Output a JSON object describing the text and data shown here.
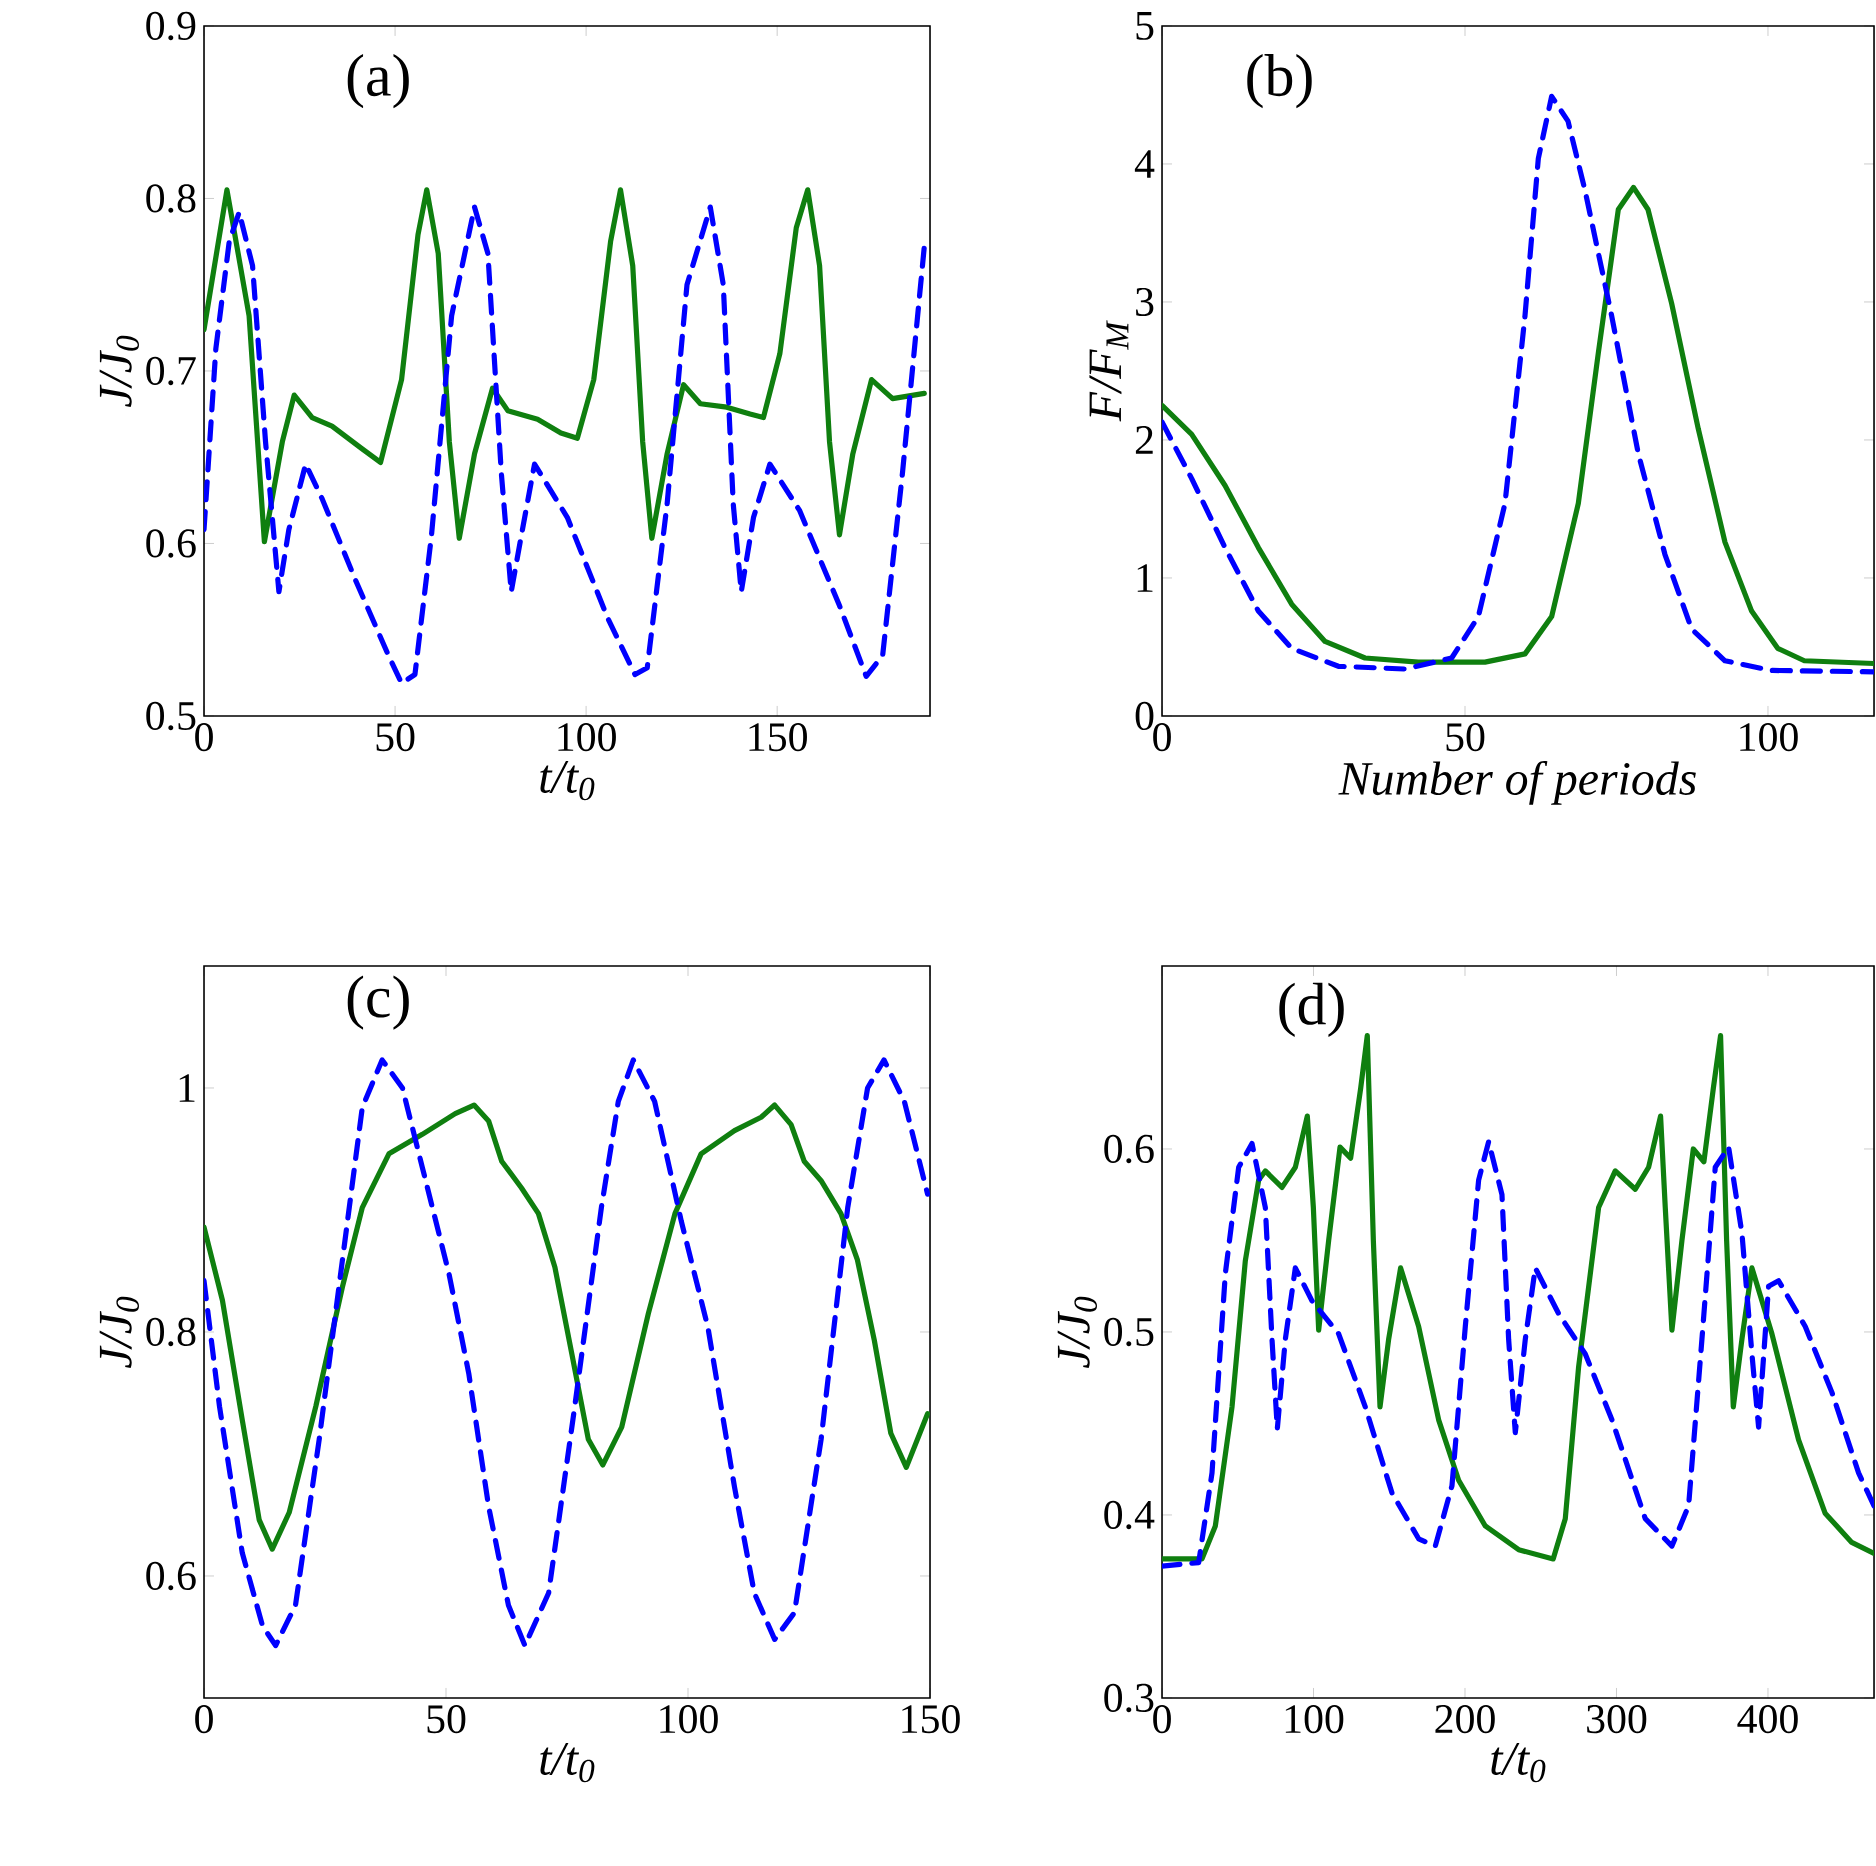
{
  "chart_data": [
    {
      "type": "line",
      "xlabel": "t/t$_{0}$",
      "ylabel": "J/J$_{0}$",
      "annotations": [
        "(a)"
      ],
      "xlim": [
        0,
        190
      ],
      "ylim": [
        0.5,
        0.9
      ],
      "xticks": [
        0,
        50,
        100,
        150
      ],
      "yticks": [
        0.5,
        0.6,
        0.7,
        0.8,
        0.9
      ],
      "series": [
        {
          "color": "#0f7f0f",
          "line_style": "solid",
          "x": [
            0,
            6,
            11.8,
            15.8,
            20.5,
            23.6,
            28.3,
            33.5,
            41.3,
            46.2,
            51.7,
            56,
            58.3,
            61.3,
            64.2,
            66.8,
            70.8,
            75.5,
            79.5,
            87.3,
            93.4,
            97.7,
            102,
            106.4,
            109,
            112.2,
            114.8,
            117.2,
            121.2,
            125.5,
            129.9,
            136.8,
            142.9,
            146.4,
            150.7,
            155,
            158,
            161.1,
            163.7,
            166.3,
            169.8,
            174.7,
            180.2,
            188.5
          ],
          "values": [
            0.724,
            0.805,
            0.732,
            0.601,
            0.659,
            0.686,
            0.673,
            0.668,
            0.655,
            0.647,
            0.695,
            0.779,
            0.805,
            0.768,
            0.659,
            0.603,
            0.652,
            0.69,
            0.677,
            0.672,
            0.664,
            0.661,
            0.695,
            0.775,
            0.805,
            0.761,
            0.659,
            0.603,
            0.652,
            0.692,
            0.681,
            0.679,
            0.675,
            0.673,
            0.71,
            0.783,
            0.805,
            0.761,
            0.659,
            0.605,
            0.652,
            0.695,
            0.684,
            0.687
          ]
        },
        {
          "color": "#0000ff",
          "line_style": "dashed",
          "x": [
            0,
            3.1,
            6.6,
            9.2,
            12.7,
            16.1,
            19.6,
            22.2,
            26.6,
            30.9,
            39.6,
            48.3,
            51.7,
            55.2,
            59.5,
            64.8,
            70.8,
            74.3,
            77.8,
            80.4,
            83,
            86.5,
            95.1,
            105.6,
            112.8,
            116,
            121.2,
            126.4,
            132.5,
            135.9,
            138.5,
            140.6,
            143.8,
            148.1,
            155.9,
            166.3,
            173.3,
            177.6,
            182.8,
            188.5
          ],
          "values": [
            0.608,
            0.713,
            0.775,
            0.792,
            0.761,
            0.659,
            0.572,
            0.608,
            0.646,
            0.626,
            0.579,
            0.535,
            0.519,
            0.524,
            0.604,
            0.732,
            0.795,
            0.768,
            0.641,
            0.572,
            0.604,
            0.646,
            0.615,
            0.557,
            0.524,
            0.528,
            0.623,
            0.75,
            0.795,
            0.75,
            0.623,
            0.572,
            0.615,
            0.646,
            0.619,
            0.564,
            0.523,
            0.535,
            0.641,
            0.772
          ]
        }
      ]
    },
    {
      "type": "line",
      "xlabel": "Number of periods",
      "ylabel": "F/F$_{M}$",
      "annotations": [
        "(b)"
      ],
      "xlim": [
        0,
        117.5
      ],
      "ylim": [
        0,
        5
      ],
      "xticks": [
        0,
        50,
        100
      ],
      "yticks": [
        0,
        1,
        2,
        3,
        4,
        5
      ],
      "series": [
        {
          "color": "#0f7f0f",
          "line_style": "solid",
          "x": [
            0,
            4.9,
            10.4,
            15.9,
            21.4,
            26.9,
            33.5,
            42.3,
            53.3,
            59.9,
            64.3,
            68.7,
            72,
            75.3,
            77.8,
            80.2,
            84.1,
            88.5,
            92.9,
            97.3,
            101.6,
            106,
            117.5
          ],
          "values": [
            2.25,
            2.04,
            1.67,
            1.22,
            0.81,
            0.54,
            0.42,
            0.39,
            0.39,
            0.45,
            0.72,
            1.54,
            2.63,
            3.67,
            3.83,
            3.67,
            2.99,
            2.08,
            1.26,
            0.76,
            0.49,
            0.4,
            0.38
          ]
        },
        {
          "color": "#0000ff",
          "line_style": "dashed",
          "x": [
            0,
            4.9,
            10.4,
            15.9,
            21.4,
            29.1,
            40.1,
            47.8,
            52.2,
            56.6,
            59.9,
            62.1,
            64.3,
            67,
            69.8,
            74.2,
            78.6,
            83,
            87.4,
            92.9,
            100.5,
            117.5
          ],
          "values": [
            2.13,
            1.72,
            1.22,
            0.76,
            0.49,
            0.36,
            0.34,
            0.42,
            0.72,
            1.54,
            2.9,
            4.04,
            4.49,
            4.31,
            3.81,
            2.9,
            1.9,
            1.17,
            0.63,
            0.4,
            0.33,
            0.32
          ]
        }
      ]
    },
    {
      "type": "line",
      "xlabel": "t/t$_{0}$",
      "ylabel": "J/J$_{0}$",
      "annotations": [
        "(c)"
      ],
      "xlim": [
        0,
        150
      ],
      "ylim": [
        0.5,
        1.1
      ],
      "xticks": [
        0,
        50,
        100,
        150
      ],
      "yticks": [
        0.6,
        0.8,
        1
      ],
      "series": [
        {
          "color": "#0f7f0f",
          "line_style": "solid",
          "x": [
            0,
            3.8,
            7.9,
            11.4,
            14.1,
            17.6,
            23.1,
            28.6,
            32.7,
            38.2,
            45.1,
            51.9,
            55.8,
            58.8,
            61.5,
            65.6,
            69.1,
            72.5,
            76,
            79.4,
            82.4,
            86.3,
            91.8,
            97.3,
            102.7,
            109.6,
            115.1,
            117.9,
            121.3,
            124,
            127.5,
            131.6,
            135,
            138.5,
            141.9,
            145.1,
            149.5
          ],
          "values": [
            0.886,
            0.826,
            0.728,
            0.646,
            0.622,
            0.652,
            0.739,
            0.837,
            0.902,
            0.946,
            0.962,
            0.979,
            0.986,
            0.973,
            0.94,
            0.918,
            0.897,
            0.853,
            0.782,
            0.712,
            0.691,
            0.722,
            0.815,
            0.897,
            0.946,
            0.965,
            0.976,
            0.986,
            0.97,
            0.94,
            0.924,
            0.897,
            0.859,
            0.793,
            0.717,
            0.689,
            0.733
          ]
        },
        {
          "color": "#0000ff",
          "line_style": "dashed",
          "x": [
            0,
            3.2,
            7.9,
            12.1,
            14.8,
            18.9,
            23.8,
            28.6,
            32.7,
            36.8,
            41,
            45.1,
            50.6,
            54.7,
            58.8,
            62.9,
            66.3,
            71.2,
            76.6,
            82.1,
            85.6,
            88.7,
            93.1,
            98.6,
            104.1,
            109.6,
            113.7,
            117.9,
            122,
            127.5,
            133,
            137.1,
            140.5,
            144.7,
            149.5
          ],
          "values": [
            0.842,
            0.739,
            0.619,
            0.559,
            0.543,
            0.576,
            0.712,
            0.859,
            0.984,
            1.023,
            1.0,
            0.935,
            0.848,
            0.766,
            0.657,
            0.576,
            0.543,
            0.586,
            0.739,
            0.902,
            0.989,
            1.023,
            0.989,
            0.891,
            0.804,
            0.673,
            0.586,
            0.548,
            0.57,
            0.712,
            0.902,
            1.0,
            1.023,
            0.989,
            0.913
          ]
        }
      ]
    },
    {
      "type": "line",
      "xlabel": "t/t$_{0}$",
      "ylabel": "J/J$_{0}$",
      "annotations": [
        "(d)"
      ],
      "xlim": [
        0,
        470
      ],
      "ylim": [
        0.3,
        0.7
      ],
      "xticks": [
        0,
        100,
        200,
        300,
        400
      ],
      "yticks": [
        0.3,
        0.4,
        0.5,
        0.6
      ],
      "series": [
        {
          "color": "#0f7f0f",
          "line_style": "solid",
          "x": [
            0,
            26.4,
            35.2,
            46.2,
            55,
            63.8,
            68.2,
            79.2,
            88,
            95.9,
            99.9,
            103.4,
            110,
            117.5,
            124.5,
            131.1,
            135.5,
            139.5,
            143.9,
            149.6,
            157.5,
            169.4,
            182.6,
            195.8,
            213.4,
            235.4,
            258.2,
            266.2,
            275,
            288.2,
            299.2,
            312.4,
            321.2,
            329.1,
            332.2,
            336.6,
            343.2,
            350.7,
            357.7,
            363.9,
            368.7,
            372.7,
            377.1,
            382.8,
            389.4,
            402.6,
            420.2,
            437.7,
            455.3,
            470
          ],
          "values": [
            0.376,
            0.376,
            0.394,
            0.459,
            0.539,
            0.583,
            0.588,
            0.579,
            0.59,
            0.618,
            0.568,
            0.501,
            0.55,
            0.601,
            0.595,
            0.633,
            0.662,
            0.55,
            0.459,
            0.496,
            0.535,
            0.503,
            0.452,
            0.419,
            0.394,
            0.381,
            0.376,
            0.398,
            0.481,
            0.568,
            0.588,
            0.578,
            0.59,
            0.618,
            0.568,
            0.501,
            0.55,
            0.6,
            0.593,
            0.633,
            0.662,
            0.55,
            0.459,
            0.496,
            0.535,
            0.499,
            0.441,
            0.401,
            0.385,
            0.379
          ]
        },
        {
          "color": "#0000ff",
          "line_style": "dashed",
          "x": [
            0,
            24.2,
            33,
            41.8,
            50.6,
            59.4,
            68.2,
            72.6,
            76.1,
            81.4,
            88,
            99,
            116.6,
            134.2,
            151.8,
            169.4,
            180.4,
            191.4,
            200.2,
            209,
            215.6,
            224.4,
            228.8,
            233.2,
            239.8,
            246.4,
            261.8,
            279.4,
            297,
            319,
            336.6,
            347.6,
            356.4,
            365.2,
            374,
            382.8,
            389.4,
            393.8,
            400.4,
            407,
            424.6,
            442.2,
            459.8,
            470
          ],
          "values": [
            0.372,
            0.374,
            0.423,
            0.532,
            0.59,
            0.603,
            0.568,
            0.496,
            0.447,
            0.496,
            0.535,
            0.517,
            0.499,
            0.459,
            0.412,
            0.387,
            0.383,
            0.416,
            0.503,
            0.583,
            0.604,
            0.575,
            0.496,
            0.445,
            0.496,
            0.535,
            0.51,
            0.488,
            0.452,
            0.398,
            0.383,
            0.405,
            0.496,
            0.59,
            0.601,
            0.554,
            0.488,
            0.448,
            0.525,
            0.528,
            0.503,
            0.467,
            0.423,
            0.405
          ]
        }
      ]
    }
  ]
}
